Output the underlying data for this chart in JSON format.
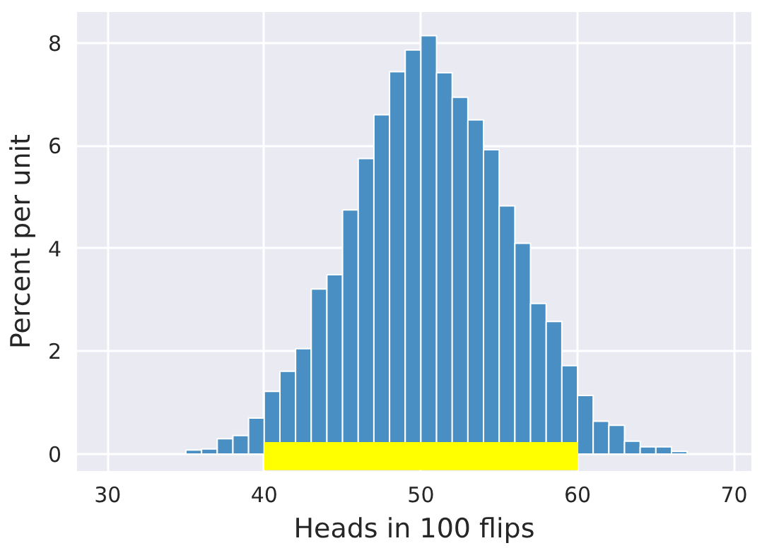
{
  "chart_data": {
    "type": "histogram",
    "xlabel": "Heads in 100 flips",
    "ylabel": "Percent per unit",
    "bins": [
      30,
      31,
      32,
      33,
      34,
      35,
      36,
      37,
      38,
      39,
      40,
      41,
      42,
      43,
      44,
      45,
      46,
      47,
      48,
      49,
      50,
      51,
      52,
      53,
      54,
      55,
      56,
      57,
      58,
      59,
      60,
      61,
      62,
      63,
      64,
      65,
      66,
      67,
      68,
      69,
      70
    ],
    "values": [
      0,
      0,
      0,
      0,
      0,
      0.08,
      0.1,
      0.3,
      0.36,
      0.7,
      1.22,
      1.61,
      2.05,
      3.21,
      3.49,
      4.75,
      5.75,
      6.6,
      7.44,
      7.86,
      8.14,
      7.42,
      6.94,
      6.5,
      5.92,
      4.83,
      4.1,
      2.93,
      2.58,
      1.72,
      1.14,
      0.64,
      0.56,
      0.25,
      0.14,
      0.14,
      0.05,
      0,
      0,
      0
    ],
    "color": "#4a8fc3",
    "xlim": [
      28.05,
      71.1
    ],
    "ylim": [
      -0.33,
      8.6
    ],
    "xticks": [
      30,
      40,
      50,
      60,
      70
    ],
    "yticks": [
      0,
      2,
      4,
      6,
      8
    ],
    "grid": true,
    "bands": [
      {
        "axis": "x",
        "from": 40,
        "to": 60,
        "color": "#ffff00"
      }
    ]
  }
}
